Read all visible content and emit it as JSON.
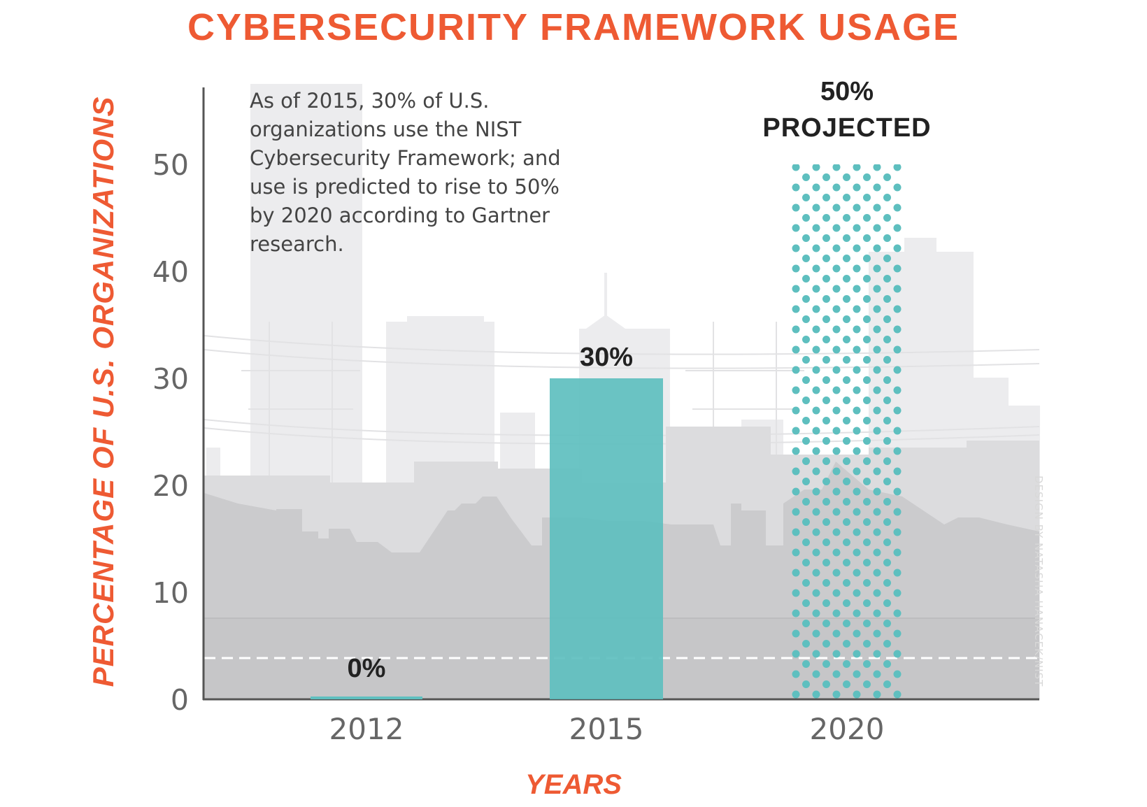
{
  "chart_data": {
    "type": "bar",
    "title": "CYBERSECURITY FRAMEWORK USAGE",
    "xlabel": "YEARS",
    "ylabel": "PERCENTAGE OF U.S. ORGANIZATIONS",
    "categories": [
      "2012",
      "2015",
      "2020"
    ],
    "values": [
      0,
      30,
      50
    ],
    "data_labels": [
      "0%",
      "30%",
      "50%"
    ],
    "projected_flags": [
      false,
      false,
      true
    ],
    "projected_label": "PROJECTED",
    "ylim": [
      0,
      57
    ],
    "yticks": [
      0,
      10,
      20,
      30,
      40,
      50
    ],
    "grid": false,
    "legend": "none",
    "annotation": "As of 2015, 30% of U.S. organizations use the NIST Cybersecurity Framework; and use is predicted to rise to 50% by 2020 according to Gartner research.",
    "credit": "DESIGN BY NATASHA HANACEK/NIST",
    "colors": {
      "accent": "#ee5a33",
      "bar": "#5ebfbf",
      "projected_dots": "#5ebfbf",
      "axis": "#555555",
      "tick_text": "#666666",
      "label_text": "#222222",
      "skyline_light": "#ececee",
      "skyline_mid": "#dcdcde",
      "ground": "#cbcbcd"
    }
  }
}
